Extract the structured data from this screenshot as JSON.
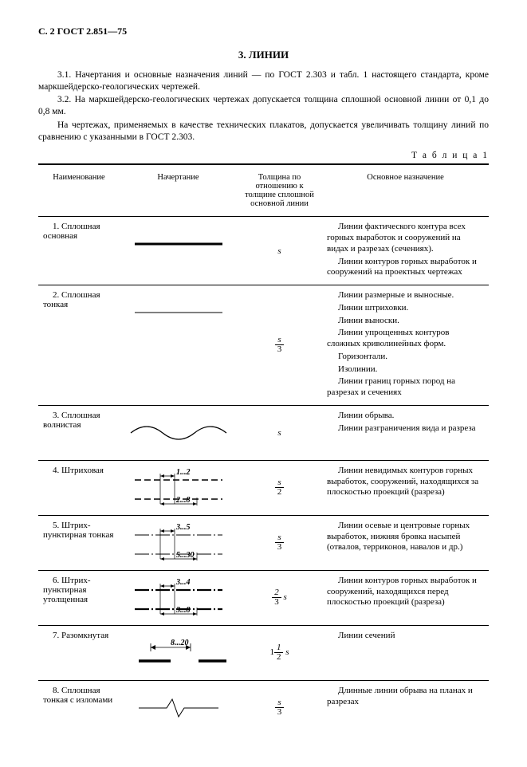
{
  "header": "С. 2 ГОСТ 2.851—75",
  "section_title": "3. ЛИНИИ",
  "paras": {
    "p1": "3.1. Начертания и основные назначения линий — по ГОСТ 2.303 и табл. 1 настоящего стандарта, кроме маркшейдерско-геологических чертежей.",
    "p2": "3.2. На маркшейдерско-геологических чертежах допускается толщина сплошной основной линии от 0,1 до 0,8 мм.",
    "p3": "На чертежах, применяемых в качестве технических плакатов, допускается увеличивать толщину линий по сравнению с указанными в ГОСТ 2.303."
  },
  "table_label": "Т а б л и ц а  1",
  "columns": {
    "c1": "Наименование",
    "c2": "Начертание",
    "c3": "Толщина по отношению к толщине сплошной основной линии",
    "c4": "Основное назначение"
  },
  "rows": {
    "r1": {
      "name": "1. Сплошная основная",
      "thick_html": "s",
      "svg": "solid_thick",
      "desc": [
        "Линии фактического контура всех горных выработок и сооружений на видах и разрезах (сечениях).",
        "Линии контуров горных выработок и сооружений на проектных чертежах"
      ]
    },
    "r2": {
      "name": "2. Сплошная тонкая",
      "frac": {
        "n": "s",
        "d": "3"
      },
      "svg": "solid_thin",
      "desc": [
        "Линии размерные и выносные.",
        "Линии штриховки.",
        "Линии выноски.",
        "Линии упрощенных контуров сложных криволинейных форм.",
        "Горизонтали.",
        "Изолинии.",
        "Линии границ горных пород на разрезах и сечениях"
      ]
    },
    "r3": {
      "name": "3. Сплошная волнистая",
      "thick_html": "s",
      "svg": "wavy",
      "desc": [
        "Линии обрыва.",
        "Линии разграничения вида и разреза"
      ]
    },
    "r4": {
      "name": "4. Штриховая",
      "frac": {
        "n": "s",
        "d": "2"
      },
      "svg": "dashed",
      "labels": {
        "top": "1...2",
        "bot": "2...8"
      },
      "desc": [
        "Линии невидимых контуров горных выработок, сооружений, находящихся за плоскостью проекций (разреза)"
      ]
    },
    "r5": {
      "name": "5. Штрих-пунктирная тонкая",
      "frac": {
        "n": "s",
        "d": "3"
      },
      "svg": "dashdot_thin",
      "labels": {
        "top": "3...5",
        "bot": "5...30"
      },
      "desc": [
        "Линии осевые и центровые горных выработок, нижняя бровка насыпей (отвалов, терриконов, навалов и др.)"
      ]
    },
    "r6": {
      "name": "6. Штрих-пунктирная утолщенная",
      "mixed": {
        "pre": "",
        "n": "2",
        "d": "3",
        "post": " s"
      },
      "svg": "dashdot_thick",
      "labels": {
        "top": "3...4",
        "bot": "3...8"
      },
      "desc": [
        "Линии контуров горных выработок и сооружений, находящихся перед плоскостью проекций (разреза)"
      ]
    },
    "r7": {
      "name": "7. Разомкнутая",
      "mixed": {
        "pre": "1",
        "n": "1",
        "d": "2",
        "post": " s"
      },
      "svg": "open",
      "labels": {
        "top": "8...20"
      },
      "desc": [
        "Линии сечений"
      ]
    },
    "r8": {
      "name": "8. Сплошная тонкая с изломами",
      "frac": {
        "n": "s",
        "d": "3"
      },
      "svg": "zigzag",
      "desc": [
        "Длинные линии обрыва на планах и разрезах"
      ]
    }
  }
}
